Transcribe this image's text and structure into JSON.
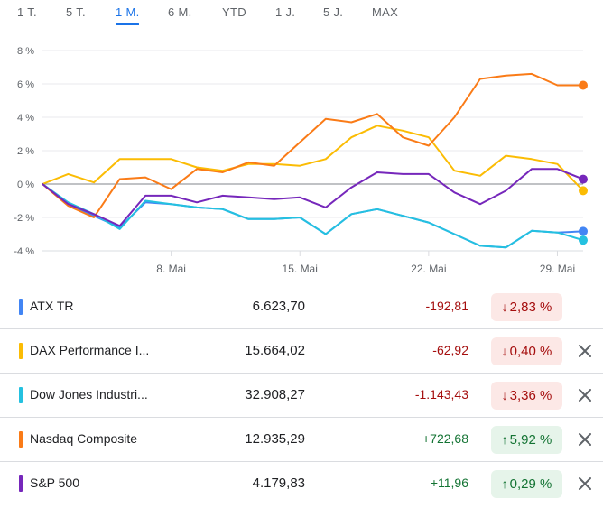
{
  "tabs": [
    {
      "label": "1 T.",
      "active": false
    },
    {
      "label": "5 T.",
      "active": false
    },
    {
      "label": "1 M.",
      "active": true
    },
    {
      "label": "6 M.",
      "active": false
    },
    {
      "label": "YTD",
      "active": false
    },
    {
      "label": "1 J.",
      "active": false
    },
    {
      "label": "5 J.",
      "active": false
    },
    {
      "label": "MAX",
      "active": false
    }
  ],
  "chart_data": {
    "type": "line",
    "title": "",
    "xlabel": "",
    "ylabel": "",
    "ylim": [
      -4,
      8
    ],
    "y_ticks": [
      "8 %",
      "6 %",
      "4 %",
      "2 %",
      "0 %",
      "-2 %",
      "-4 %"
    ],
    "y_tick_values": [
      8,
      6,
      4,
      2,
      0,
      -2,
      -4
    ],
    "x_ticks": [
      "8. Mai",
      "15. Mai",
      "22. Mai",
      "29. Mai"
    ],
    "x_tick_index": [
      5,
      10,
      15,
      20
    ],
    "points": 22,
    "grid": "horizontal",
    "zero_line": true,
    "series": [
      {
        "name": "ATX TR",
        "color": "#4285f4",
        "values": [
          0,
          -1.2,
          -1.9,
          -2.6,
          -1.1,
          -1.2,
          -1.4,
          -1.5,
          -2.1,
          -2.1,
          -2.0,
          -3.0,
          -1.8,
          -1.5,
          -1.9,
          -2.3,
          -3.0,
          -3.7,
          -3.8,
          -2.8,
          -2.9,
          -2.83
        ]
      },
      {
        "name": "DAX Performance I...",
        "color": "#fbbc04",
        "values": [
          0,
          0.6,
          0.1,
          1.5,
          1.5,
          1.5,
          1.0,
          0.8,
          1.2,
          1.2,
          1.1,
          1.5,
          2.8,
          3.5,
          3.2,
          2.8,
          0.8,
          0.5,
          1.7,
          1.5,
          1.2,
          -0.4
        ]
      },
      {
        "name": "Dow Jones Industri...",
        "color": "#24c1e0",
        "values": [
          0,
          -1.1,
          -1.8,
          -2.7,
          -1.0,
          -1.2,
          -1.4,
          -1.5,
          -2.1,
          -2.1,
          -2.0,
          -3.0,
          -1.8,
          -1.5,
          -1.9,
          -2.3,
          -3.0,
          -3.7,
          -3.8,
          -2.8,
          -2.9,
          -3.36
        ]
      },
      {
        "name": "Nasdaq Composite",
        "color": "#fa7b17",
        "values": [
          0,
          -1.3,
          -2.0,
          0.3,
          0.4,
          -0.3,
          0.9,
          0.7,
          1.3,
          1.1,
          2.5,
          3.9,
          3.7,
          4.2,
          2.8,
          2.3,
          4.0,
          6.3,
          6.5,
          6.6,
          5.92,
          5.92
        ]
      },
      {
        "name": "S&P 500",
        "color": "#7627bb",
        "values": [
          0,
          -1.2,
          -1.8,
          -2.5,
          -0.7,
          -0.7,
          -1.1,
          -0.7,
          -0.8,
          -0.9,
          -0.8,
          -1.4,
          -0.2,
          0.7,
          0.6,
          0.6,
          -0.5,
          -1.2,
          -0.4,
          0.9,
          0.9,
          0.29
        ]
      }
    ]
  },
  "rows": [
    {
      "name": "ATX TR",
      "color": "#4285f4",
      "price": "6.623,70",
      "change": "-192,81",
      "direction": "down",
      "arrow": "↓",
      "percent": "2,83 %",
      "closable": false
    },
    {
      "name": "DAX Performance I...",
      "color": "#fbbc04",
      "price": "15.664,02",
      "change": "-62,92",
      "direction": "down",
      "arrow": "↓",
      "percent": "0,40 %",
      "closable": true
    },
    {
      "name": "Dow Jones Industri...",
      "color": "#24c1e0",
      "price": "32.908,27",
      "change": "-1.143,43",
      "direction": "down",
      "arrow": "↓",
      "percent": "3,36 %",
      "closable": true
    },
    {
      "name": "Nasdaq Composite",
      "color": "#fa7b17",
      "price": "12.935,29",
      "change": "+722,68",
      "direction": "up",
      "arrow": "↑",
      "percent": "5,92 %",
      "closable": true
    },
    {
      "name": "S&P 500",
      "color": "#7627bb",
      "price": "4.179,83",
      "change": "+11,96",
      "direction": "up",
      "arrow": "↑",
      "percent": "0,29 %",
      "closable": true
    }
  ]
}
